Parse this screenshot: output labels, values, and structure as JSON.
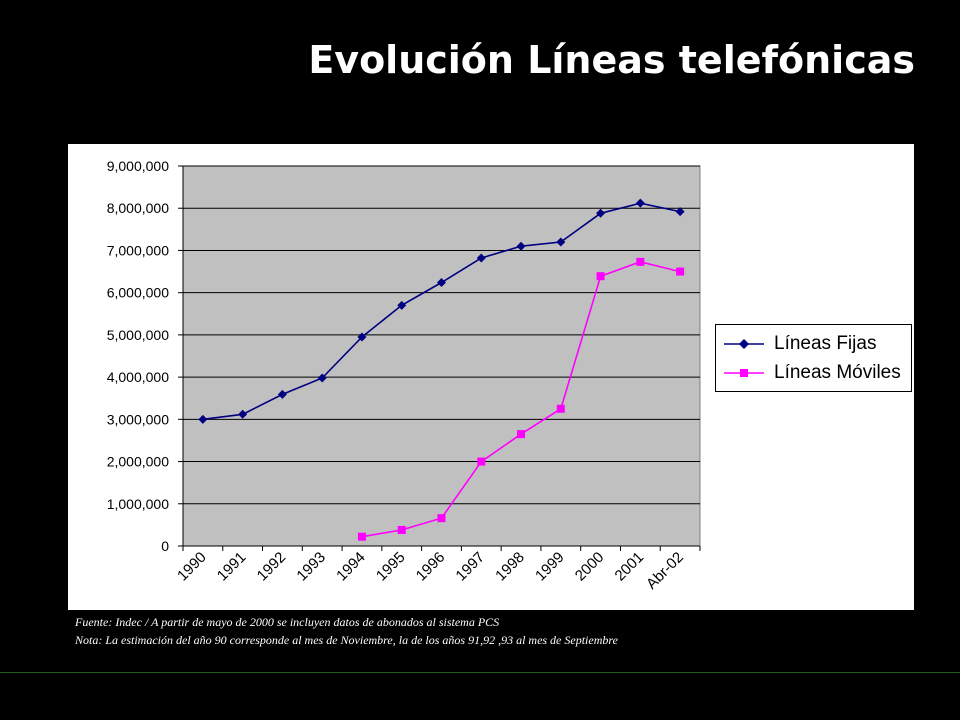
{
  "slide": {
    "title": "Evolución Líneas telefónicas"
  },
  "chart_data": {
    "type": "line",
    "title": "",
    "xlabel": "",
    "ylabel": "",
    "categories": [
      "1990",
      "1991",
      "1992",
      "1993",
      "1994",
      "1995",
      "1996",
      "1997",
      "1998",
      "1999",
      "2000",
      "2001",
      "Abr-02"
    ],
    "ylim": [
      0,
      9000000
    ],
    "yticks": [
      0,
      1000000,
      2000000,
      3000000,
      4000000,
      5000000,
      6000000,
      7000000,
      8000000,
      9000000
    ],
    "ytick_labels": [
      "0",
      "1,000,000",
      "2,000,000",
      "3,000,000",
      "4,000,000",
      "5,000,000",
      "6,000,000",
      "7,000,000",
      "8,000,000",
      "9,000,000"
    ],
    "grid": true,
    "legend_position": "right",
    "plot_background": "#c0c0c0",
    "series": [
      {
        "name": "Líneas Fijas",
        "color": "#000080",
        "marker": "diamond",
        "values": [
          3000000,
          3120000,
          3590000,
          3980000,
          4950000,
          5700000,
          6240000,
          6820000,
          7100000,
          7200000,
          7880000,
          8120000,
          7920000
        ]
      },
      {
        "name": "Líneas Móviles",
        "color": "#ff00ff",
        "marker": "square",
        "values": [
          null,
          null,
          null,
          null,
          220000,
          380000,
          660000,
          2000000,
          2650000,
          3250000,
          6390000,
          6730000,
          6500000
        ]
      }
    ]
  },
  "notes": {
    "source": "Fuente:  Indec / A partir  de mayo de 2000 se incluyen datos de abonados al sistema PCS",
    "note": "Nota: La estimación del año 90 corresponde al mes de Noviembre, la de los años 91,92 ,93 al mes de Septiembre"
  }
}
